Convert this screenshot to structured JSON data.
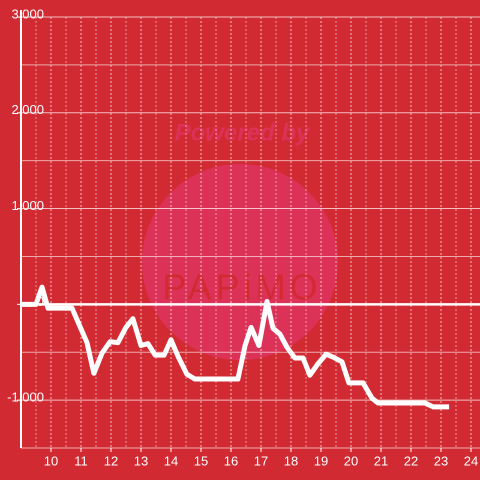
{
  "chart_data": {
    "type": "line",
    "annotations": [
      "Powered by",
      "PAPiMO"
    ],
    "x": [
      9.0,
      9.5,
      9.7,
      9.9,
      10.7,
      11.2,
      11.43,
      11.7,
      11.97,
      12.23,
      12.5,
      12.73,
      13.0,
      13.23,
      13.47,
      13.77,
      14.0,
      14.23,
      14.53,
      14.8,
      16.23,
      16.47,
      16.67,
      16.93,
      17.2,
      17.4,
      17.63,
      17.87,
      18.13,
      18.4,
      18.63,
      18.9,
      19.17,
      19.4,
      19.7,
      19.93,
      20.4,
      20.7,
      20.9,
      22.47,
      22.73,
      23.27
    ],
    "series": [
      {
        "color": "#ffffff",
        "values": [
          0,
          0,
          180,
          -40,
          -40,
          -400,
          -720,
          -510,
          -390,
          -400,
          -240,
          -150,
          -430,
          -410,
          -530,
          -530,
          -370,
          -540,
          -730,
          -780,
          -780,
          -430,
          -240,
          -430,
          30,
          -250,
          -310,
          -450,
          -560,
          -560,
          -740,
          -620,
          -520,
          -550,
          -600,
          -820,
          -820,
          -980,
          -1030,
          -1030,
          -1070,
          -1070
        ]
      }
    ],
    "xlim": [
      9,
      24.3
    ],
    "xticks": [
      10,
      11,
      12,
      13,
      14,
      15,
      16,
      17,
      18,
      19,
      20,
      21,
      22,
      23,
      24
    ],
    "xminorticks": [
      9.5,
      10.5,
      11.5,
      12.5,
      13.5,
      14.5,
      15.5,
      16.5,
      17.5,
      18.5,
      19.5,
      20.5,
      21.5,
      22.5,
      23.5
    ],
    "ylim": [
      -1500,
      3000
    ],
    "yticks": [
      {
        "value": 3000,
        "label": "3,000"
      },
      {
        "value": 2000,
        "label": "2,000"
      },
      {
        "value": 1000,
        "label": "1,000"
      },
      0,
      {
        "value": -1000,
        "label": "-1,000"
      }
    ],
    "yminorticks": [
      2500,
      1500,
      500,
      -500,
      -1500
    ],
    "grid": true
  }
}
